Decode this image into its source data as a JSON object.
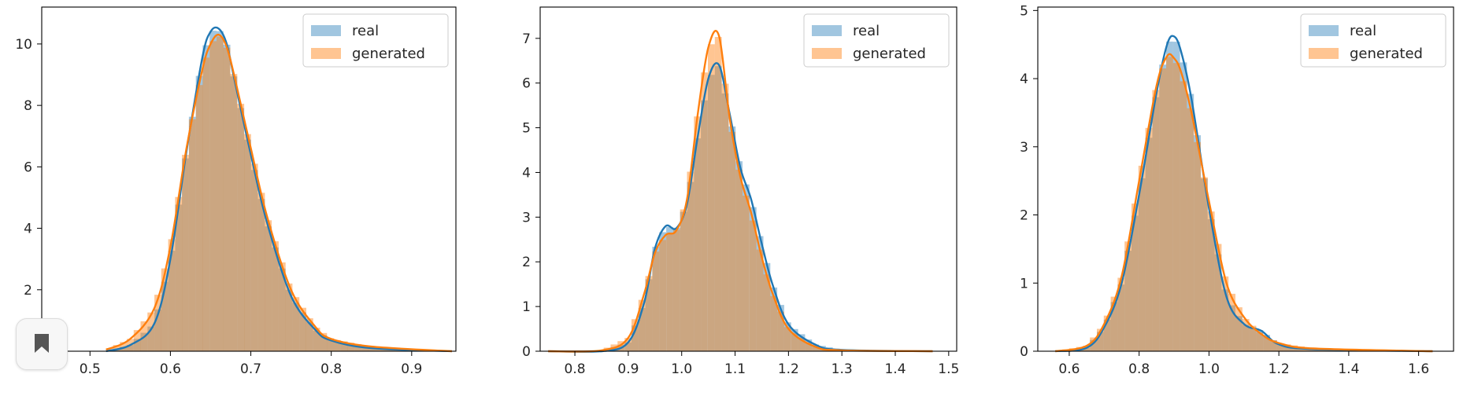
{
  "colors": {
    "real": "#1f77b4",
    "generated": "#ff7f0e",
    "overlap": "#c4a489"
  },
  "legend": {
    "real": "real",
    "generated": "generated"
  },
  "chart_data": [
    {
      "type": "area",
      "xlim": [
        0.44,
        0.955
      ],
      "ylim": [
        0,
        11.2
      ],
      "xticks": [
        "0.5",
        "0.6",
        "0.7",
        "0.8",
        "0.9"
      ],
      "yticks": [
        "0",
        "2",
        "4",
        "6",
        "8",
        "10"
      ],
      "legend_position": "top-right",
      "series": [
        {
          "name": "real",
          "x": [
            0.52,
            0.55,
            0.58,
            0.6,
            0.62,
            0.64,
            0.65,
            0.66,
            0.67,
            0.68,
            0.7,
            0.72,
            0.75,
            0.78,
            0.8,
            0.85,
            0.95
          ],
          "y": [
            0.0,
            0.2,
            0.9,
            3.0,
            6.5,
            9.6,
            10.4,
            10.5,
            10.0,
            8.8,
            6.4,
            4.2,
            1.8,
            0.7,
            0.35,
            0.1,
            0.0
          ]
        },
        {
          "name": "generated",
          "x": [
            0.52,
            0.55,
            0.58,
            0.6,
            0.62,
            0.64,
            0.65,
            0.66,
            0.67,
            0.68,
            0.7,
            0.72,
            0.75,
            0.78,
            0.8,
            0.85,
            0.95
          ],
          "y": [
            0.05,
            0.4,
            1.4,
            3.4,
            6.6,
            9.2,
            10.0,
            10.3,
            9.9,
            8.9,
            6.6,
            4.4,
            2.0,
            0.8,
            0.4,
            0.15,
            0.0
          ]
        }
      ]
    },
    {
      "type": "area",
      "xlim": [
        0.735,
        1.515
      ],
      "ylim": [
        0,
        7.7
      ],
      "xticks": [
        "0.8",
        "0.9",
        "1.0",
        "1.1",
        "1.2",
        "1.3",
        "1.4",
        "1.5"
      ],
      "yticks": [
        "0",
        "1",
        "2",
        "3",
        "4",
        "5",
        "6",
        "7"
      ],
      "legend_position": "top-right",
      "series": [
        {
          "name": "real",
          "x": [
            0.75,
            0.85,
            0.9,
            0.93,
            0.95,
            0.97,
            0.99,
            1.01,
            1.03,
            1.05,
            1.07,
            1.09,
            1.11,
            1.13,
            1.15,
            1.17,
            1.2,
            1.25,
            1.3,
            1.47
          ],
          "y": [
            0.0,
            0.0,
            0.2,
            1.1,
            2.3,
            2.8,
            2.75,
            3.3,
            4.8,
            6.1,
            6.4,
            5.3,
            4.1,
            3.4,
            2.4,
            1.5,
            0.6,
            0.15,
            0.03,
            0.0
          ]
        },
        {
          "name": "generated",
          "x": [
            0.75,
            0.85,
            0.9,
            0.93,
            0.95,
            0.97,
            0.99,
            1.01,
            1.03,
            1.05,
            1.07,
            1.09,
            1.11,
            1.13,
            1.15,
            1.17,
            1.2,
            1.25,
            1.3,
            1.47
          ],
          "y": [
            0.0,
            0.02,
            0.3,
            1.3,
            2.2,
            2.6,
            2.7,
            3.4,
            5.3,
            6.8,
            7.05,
            5.2,
            3.9,
            3.1,
            2.1,
            1.3,
            0.5,
            0.1,
            0.02,
            0.0
          ]
        }
      ]
    },
    {
      "type": "area",
      "xlim": [
        0.51,
        1.7
      ],
      "ylim": [
        0,
        5.05
      ],
      "xticks": [
        "0.6",
        "0.8",
        "1.0",
        "1.2",
        "1.4",
        "1.6"
      ],
      "yticks": [
        "0",
        "1",
        "2",
        "3",
        "4",
        "5"
      ],
      "legend_position": "top-right",
      "series": [
        {
          "name": "real",
          "x": [
            0.56,
            0.65,
            0.7,
            0.75,
            0.8,
            0.85,
            0.88,
            0.9,
            0.92,
            0.95,
            1.0,
            1.05,
            1.1,
            1.15,
            1.2,
            1.3,
            1.64
          ],
          "y": [
            0.0,
            0.05,
            0.35,
            1.0,
            2.3,
            3.8,
            4.5,
            4.62,
            4.4,
            3.7,
            2.1,
            0.8,
            0.4,
            0.3,
            0.1,
            0.03,
            0.0
          ]
        },
        {
          "name": "generated",
          "x": [
            0.56,
            0.65,
            0.7,
            0.75,
            0.8,
            0.85,
            0.88,
            0.9,
            0.92,
            0.95,
            1.0,
            1.05,
            1.1,
            1.15,
            1.2,
            1.3,
            1.64
          ],
          "y": [
            0.0,
            0.08,
            0.4,
            1.1,
            2.5,
            3.9,
            4.33,
            4.3,
            4.1,
            3.5,
            2.2,
            1.0,
            0.5,
            0.25,
            0.12,
            0.04,
            0.0
          ]
        }
      ]
    }
  ]
}
